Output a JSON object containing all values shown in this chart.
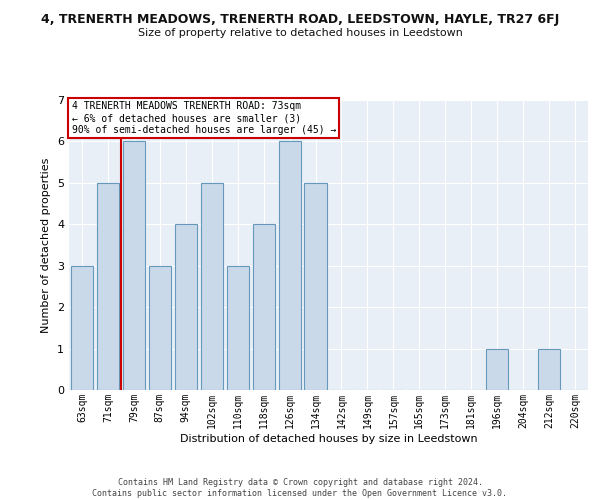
{
  "title": "4, TRENERTH MEADOWS, TRENERTH ROAD, LEEDSTOWN, HAYLE, TR27 6FJ",
  "subtitle": "Size of property relative to detached houses in Leedstown",
  "xlabel": "Distribution of detached houses by size in Leedstown",
  "ylabel": "Number of detached properties",
  "categories": [
    "63sqm",
    "71sqm",
    "79sqm",
    "87sqm",
    "94sqm",
    "102sqm",
    "110sqm",
    "118sqm",
    "126sqm",
    "134sqm",
    "142sqm",
    "149sqm",
    "157sqm",
    "165sqm",
    "173sqm",
    "181sqm",
    "196sqm",
    "204sqm",
    "212sqm",
    "220sqm"
  ],
  "values": [
    3,
    5,
    6,
    3,
    4,
    5,
    3,
    4,
    6,
    5,
    0,
    0,
    0,
    0,
    0,
    0,
    1,
    0,
    1,
    0
  ],
  "bar_color": "#c9d9ea",
  "bar_edge_color": "#6699bb",
  "annotation_title": "4 TRENERTH MEADOWS TRENERTH ROAD: 73sqm",
  "annotation_line1": "← 6% of detached houses are smaller (3)",
  "annotation_line2": "90% of semi-detached houses are larger (45) →",
  "annotation_box_color": "#ffffff",
  "annotation_box_edge": "#cc0000",
  "vline_color": "#cc0000",
  "vline_x": 1.5,
  "ylim": [
    0,
    7
  ],
  "yticks": [
    0,
    1,
    2,
    3,
    4,
    5,
    6,
    7
  ],
  "footer": "Contains HM Land Registry data © Crown copyright and database right 2024.\nContains public sector information licensed under the Open Government Licence v3.0.",
  "bg_color": "#ffffff",
  "plot_bg_color": "#e8eff6",
  "grid_color": "#ffffff",
  "title_fontsize": 9,
  "subtitle_fontsize": 8,
  "ylabel_fontsize": 8,
  "xlabel_fontsize": 8,
  "tick_fontsize": 7,
  "footer_fontsize": 6
}
